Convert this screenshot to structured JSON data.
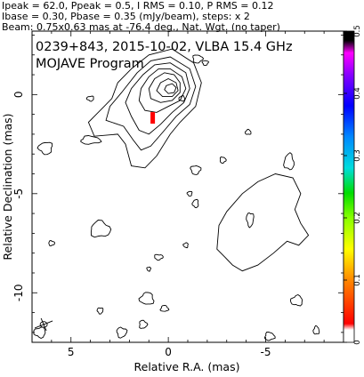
{
  "header": {
    "line1": "Ipeak = 62.0, Ppeak = 0.5, I RMS = 0.10, P RMS = 0.12",
    "line2": "Ibase = 0.30, Pbase = 0.35 (mJy/beam), steps: x 2",
    "line3": "Beam: 0.75x0.63 mas at -76.4 deg., Nat. Wgt. (no taper)"
  },
  "chart_data": {
    "type": "contour",
    "title": "0239+843, 2015-10-02, VLBA 15.4 GHz",
    "subtitle": "MOJAVE Program",
    "xlabel": "Relative R.A. (mas)",
    "ylabel": "Relative Declination (mas)",
    "xlim": [
      7,
      -9
    ],
    "ylim": [
      -12.5,
      3.2
    ],
    "x_ticks": [
      5,
      0,
      -5
    ],
    "y_ticks": [
      0,
      -5,
      -10
    ],
    "colorbar": {
      "range": [
        0,
        0.5
      ],
      "ticks": [
        0,
        0.1,
        0.2,
        0.3,
        0.4,
        0.5
      ],
      "colors": [
        "#ffffff",
        "#ff0000",
        "#ff8800",
        "#ffff00",
        "#88ff00",
        "#00dd00",
        "#00dddd",
        "#0088ff",
        "#0000ff",
        "#8800ff",
        "#ff00ff",
        "#000000"
      ]
    },
    "stokes_i_contours": {
      "base": 0.3,
      "steps": "x 2",
      "peak_position": [
        -0.2,
        0.0
      ],
      "core_levels": 7
    },
    "polarization_feature": {
      "x": 0.8,
      "y": -1.2,
      "color": "#ff0000"
    }
  }
}
